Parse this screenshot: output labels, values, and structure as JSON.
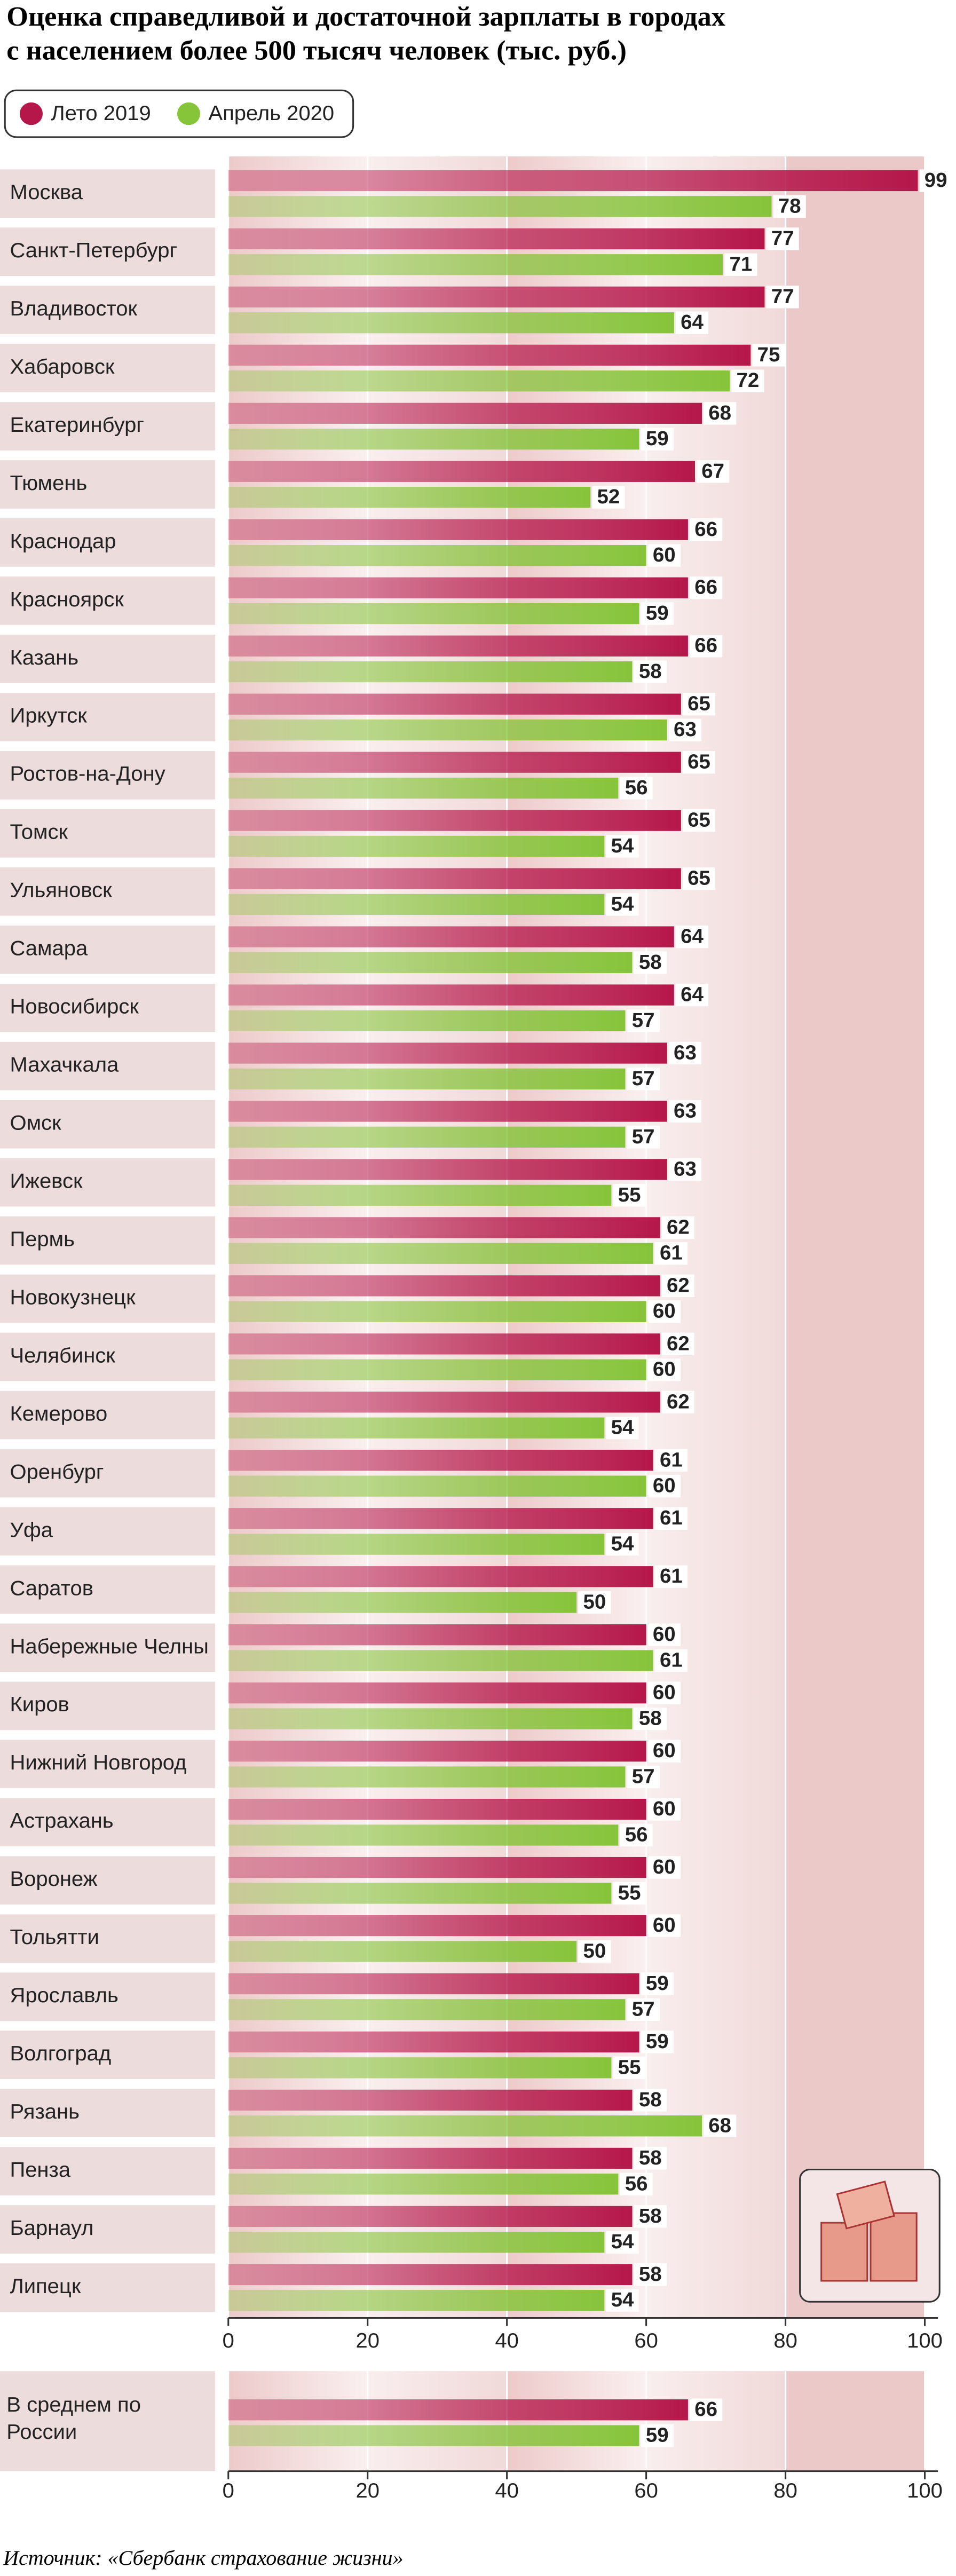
{
  "chart_data": [
    {
      "type": "bar",
      "orientation": "horizontal",
      "title": [
        "Оценка справедливой и достаточной зарплаты в городах",
        "с населением более 500 тысяч человек (тыс. руб.)"
      ],
      "categories": [
        "Москва",
        "Санкт-Петербург",
        "Владивосток",
        "Хабаровск",
        "Екатеринбург",
        "Тюмень",
        "Краснодар",
        "Красноярск",
        "Казань",
        "Иркутск",
        "Ростов-на-Дону",
        "Томск",
        "Ульяновск",
        "Самара",
        "Новосибирск",
        "Махачкала",
        "Омск",
        "Ижевск",
        "Пермь",
        "Новокузнецк",
        "Челябинск",
        "Кемерово",
        "Оренбург",
        "Уфа",
        "Саратов",
        "Набережные Челны",
        "Киров",
        "Нижний Новгород",
        "Астрахань",
        "Воронеж",
        "Тольятти",
        "Ярославль",
        "Волгоград",
        "Рязань",
        "Пенза",
        "Барнаул",
        "Липецк"
      ],
      "series": [
        {
          "name": "Лето 2019",
          "color": "#b5174a",
          "values": [
            99,
            77,
            77,
            75,
            68,
            67,
            66,
            66,
            66,
            65,
            65,
            65,
            65,
            64,
            64,
            63,
            63,
            63,
            62,
            62,
            62,
            62,
            61,
            61,
            61,
            60,
            60,
            60,
            60,
            60,
            60,
            59,
            59,
            58,
            58,
            58,
            58
          ]
        },
        {
          "name": "Апрель 2020",
          "color": "#86c43a",
          "values": [
            78,
            71,
            64,
            72,
            59,
            52,
            60,
            59,
            58,
            63,
            56,
            54,
            54,
            58,
            57,
            57,
            57,
            55,
            61,
            60,
            60,
            54,
            60,
            54,
            50,
            61,
            58,
            57,
            56,
            55,
            50,
            57,
            55,
            68,
            56,
            54,
            54
          ]
        }
      ],
      "xlim": [
        0,
        100
      ],
      "xticks": [
        0,
        20,
        40,
        60,
        80,
        100
      ],
      "legend": "top-left"
    },
    {
      "type": "bar",
      "orientation": "horizontal",
      "categories": [
        "В среднем по России"
      ],
      "series": [
        {
          "color": "#b5174a",
          "values": [
            66
          ]
        },
        {
          "color": "#86c43a",
          "values": [
            59
          ]
        }
      ],
      "xlim": [
        0,
        100
      ],
      "xticks": [
        0,
        20,
        40,
        60,
        80,
        100
      ]
    }
  ],
  "source": "Источник: «Сбербанк страхование жизни»"
}
